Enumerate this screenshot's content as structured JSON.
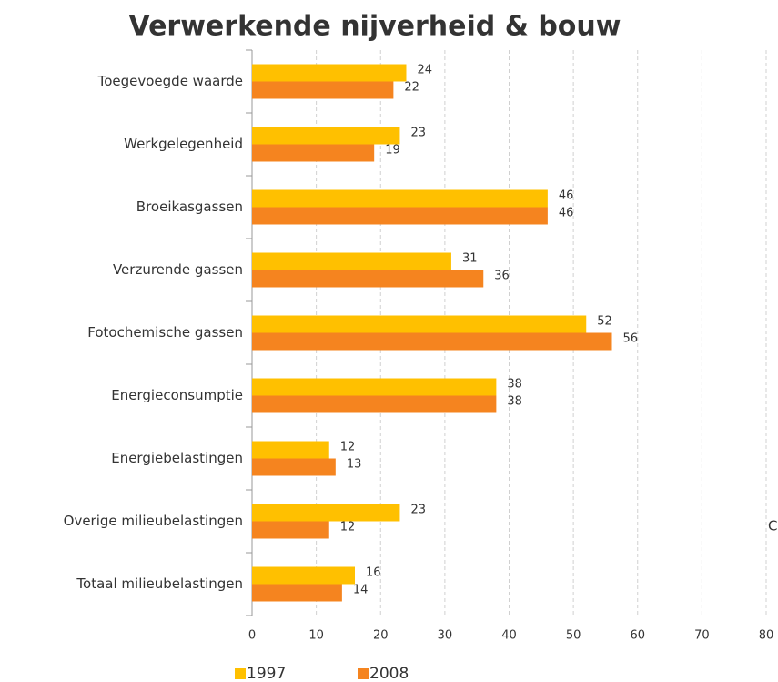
{
  "chart_data": {
    "type": "bar",
    "orientation": "horizontal",
    "title": "Verwerkende nijverheid & bouw",
    "categories": [
      "Toegevoegde waarde",
      "Werkgelegenheid",
      "Broeikasgassen",
      "Verzurende gassen",
      "Fotochemische gassen",
      "Energieconsumptie",
      "Energiebelastingen",
      "Overige milieubelastingen",
      "Totaal milieubelastingen"
    ],
    "series": [
      {
        "name": "1997",
        "color": "#ffc000",
        "values": [
          24,
          23,
          46,
          31,
          52,
          38,
          12,
          23,
          16
        ]
      },
      {
        "name": "2008",
        "color": "#f5841f",
        "values": [
          22,
          19,
          46,
          36,
          56,
          38,
          13,
          12,
          14
        ]
      }
    ],
    "xlim": [
      0,
      80
    ],
    "xticks": [
      0,
      10,
      20,
      30,
      40,
      50,
      60,
      70,
      80
    ],
    "grid": true,
    "legend": "bottom",
    "annotation": "C"
  }
}
